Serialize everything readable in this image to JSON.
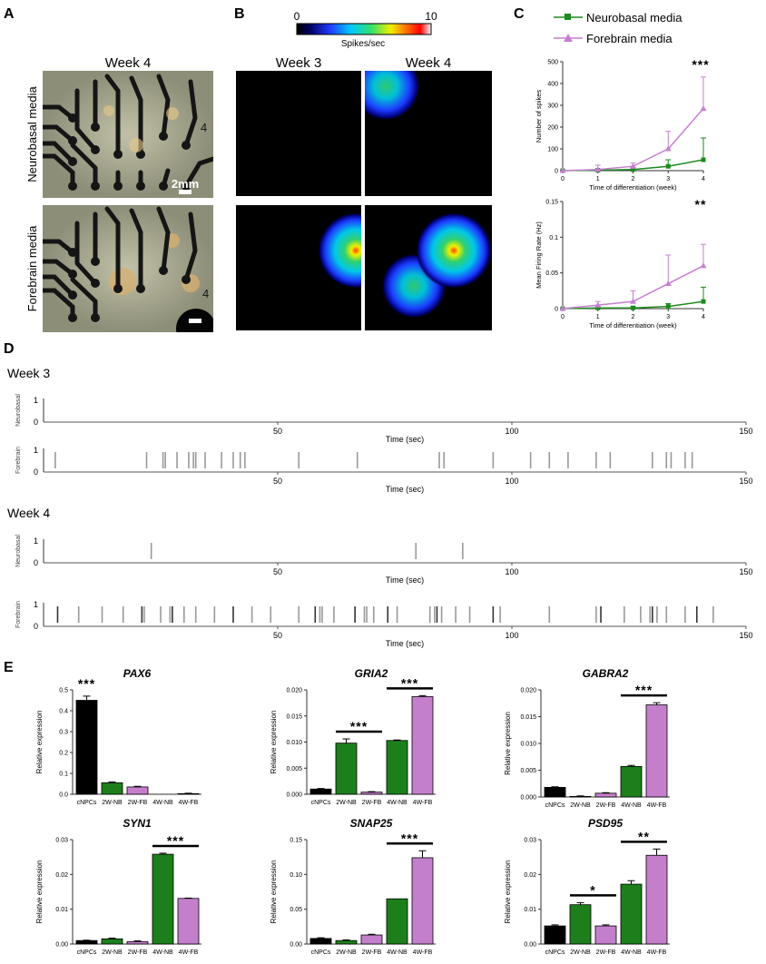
{
  "panels": {
    "A": {
      "letter": "A",
      "column_title": "Week 4",
      "row_labels": [
        "Neurobasal media",
        "Forebrain media"
      ],
      "scale_bar_label": "2mm",
      "electrode_label": "4"
    },
    "B": {
      "letter": "B",
      "colorbar_min": "0",
      "colorbar_max": "10",
      "colorbar_label": "Spikes/sec",
      "column_titles": [
        "Week 3",
        "Week 4"
      ]
    },
    "C": {
      "letter": "C",
      "legend": [
        "Neurobasal media",
        "Forebrain media"
      ]
    },
    "D": {
      "letter": "D",
      "week_labels": [
        "Week 3",
        "Week 4"
      ],
      "row_labels": [
        "Neurobasal",
        "Forebrain"
      ],
      "xlabel": "Time (sec)",
      "x_ticks": [
        "50",
        "100",
        "150"
      ],
      "y_ticks": [
        "0",
        "1"
      ]
    },
    "E": {
      "letter": "E"
    }
  },
  "colors": {
    "neurobasal": "#1e8a1e",
    "forebrain": "#c77fd0",
    "cnpc": "#000000",
    "nb_bar": "#1c7f1c",
    "fb_bar": "#c47fcc"
  },
  "chart_data": [
    {
      "id": "C-top",
      "type": "line",
      "xlabel": "Time of differentiation (week)",
      "ylabel": "Number of spikes",
      "x": [
        0,
        1,
        2,
        3,
        4
      ],
      "xlim": [
        0,
        4
      ],
      "ylim": [
        0,
        500
      ],
      "yticks": [
        0,
        100,
        200,
        300,
        400,
        500
      ],
      "xticks": [
        0,
        1,
        2,
        3,
        4
      ],
      "significance": "***",
      "series": [
        {
          "name": "Neurobasal media",
          "values": [
            0,
            2,
            5,
            20,
            50
          ],
          "err": [
            0,
            5,
            10,
            30,
            100
          ]
        },
        {
          "name": "Forebrain media",
          "values": [
            0,
            5,
            20,
            100,
            285
          ],
          "err": [
            0,
            20,
            15,
            80,
            145
          ]
        }
      ]
    },
    {
      "id": "C-bottom",
      "type": "line",
      "xlabel": "Time of differentiation (week)",
      "ylabel": "Mean Firing Rate (Hz)",
      "x": [
        0,
        1,
        2,
        3,
        4
      ],
      "xlim": [
        0,
        4
      ],
      "ylim": [
        0,
        0.15
      ],
      "yticks": [
        0,
        0.05,
        0.1,
        0.15
      ],
      "xticks": [
        0,
        1,
        2,
        3,
        4
      ],
      "significance": "**",
      "series": [
        {
          "name": "Neurobasal media",
          "values": [
            0,
            0.001,
            0.001,
            0.003,
            0.01
          ],
          "err": [
            0,
            0.002,
            0.002,
            0.004,
            0.02
          ]
        },
        {
          "name": "Forebrain media",
          "values": [
            0,
            0.005,
            0.01,
            0.035,
            0.06
          ],
          "err": [
            0,
            0.005,
            0.015,
            0.04,
            0.03
          ]
        }
      ]
    },
    {
      "id": "D-w3-nb",
      "type": "scatter",
      "xlim": [
        0,
        150
      ],
      "ylim": [
        0,
        1
      ],
      "ylabel": "Neurobasal",
      "xlabel": "Time (sec)",
      "x": []
    },
    {
      "id": "D-w3-fb",
      "type": "scatter",
      "xlim": [
        0,
        150
      ],
      "ylim": [
        0,
        1
      ],
      "ylabel": "Forebrain",
      "xlabel": "Time (sec)",
      "x": [
        2.5,
        22,
        25.5,
        26,
        28.5,
        31,
        32,
        32.5,
        34.5,
        38,
        40.5,
        42,
        43,
        54.5,
        67,
        84.5,
        85.5,
        96,
        104,
        108,
        112,
        118,
        121,
        130,
        133,
        134,
        137,
        138.5
      ]
    },
    {
      "id": "D-w4-nb",
      "type": "scatter",
      "xlim": [
        0,
        150
      ],
      "ylim": [
        0,
        1
      ],
      "ylabel": "Neurobasal",
      "xlabel": "Time (sec)",
      "x": [
        23,
        79.5,
        89.5
      ]
    },
    {
      "id": "D-w4-fb",
      "type": "scatter",
      "xlim": [
        0,
        150
      ],
      "ylim": [
        0,
        1
      ],
      "ylabel": "Forebrain",
      "xlabel": "Time (sec)",
      "x": [
        3,
        7.5,
        12.5,
        17,
        21,
        21.5,
        25,
        27,
        27.5,
        30,
        32.5,
        36.5,
        40.5,
        44.5,
        48.5,
        54.5,
        58,
        59,
        59.5,
        62,
        66.5,
        68.5,
        69,
        70.5,
        73.5,
        75.5,
        82.5,
        83.5,
        84,
        85,
        88,
        91,
        96,
        97.5,
        108,
        118,
        119,
        124,
        127.5,
        129.5,
        130,
        131,
        133,
        137,
        139.5,
        143
      ]
    },
    {
      "id": "E-PAX6",
      "type": "bar",
      "title": "PAX6",
      "ylabel": "Relative expression",
      "categories": [
        "cNPCs",
        "2W-NB",
        "2W-FB",
        "4W-NB",
        "4W-FB"
      ],
      "values": [
        0.45,
        0.055,
        0.035,
        0.0,
        0.003
      ],
      "err": [
        0.02,
        0.004,
        0.003,
        0.0,
        0.002
      ],
      "ylim": [
        0,
        0.5
      ],
      "yticks": [
        "0.0",
        "0.1",
        "0.2",
        "0.3",
        "0.4",
        "0.5"
      ],
      "significance": [
        {
          "label": "***",
          "over": 0,
          "to": 0
        }
      ]
    },
    {
      "id": "E-GRIA2",
      "type": "bar",
      "title": "GRIA2",
      "ylabel": "Relative expression",
      "categories": [
        "cNPCs",
        "2W-NB",
        "2W-FB",
        "4W-NB",
        "4W-FB"
      ],
      "values": [
        0.001,
        0.0098,
        0.0004,
        0.0103,
        0.0187
      ],
      "err": [
        0.0001,
        0.0008,
        0.0001,
        0.0001,
        0.0002
      ],
      "ylim": [
        0,
        0.02
      ],
      "yticks": [
        "0.000",
        "0.005",
        "0.010",
        "0.015",
        "0.020"
      ],
      "significance": [
        {
          "label": "***",
          "over": 1,
          "to": 2
        },
        {
          "label": "***",
          "over": 3,
          "to": 4
        }
      ]
    },
    {
      "id": "E-GABRA2",
      "type": "bar",
      "title": "GABRA2",
      "ylabel": "Relative expression",
      "categories": [
        "cNPCs",
        "2W-NB",
        "2W-FB",
        "4W-NB",
        "4W-FB"
      ],
      "values": [
        0.0018,
        0.0001,
        0.0007,
        0.0057,
        0.0172
      ],
      "err": [
        0.0001,
        0.0001,
        0.0001,
        0.0002,
        0.0004
      ],
      "ylim": [
        0,
        0.02
      ],
      "yticks": [
        "0.000",
        "0.005",
        "0.010",
        "0.015",
        "0.020"
      ],
      "significance": [
        {
          "label": "***",
          "over": 3,
          "to": 4
        }
      ]
    },
    {
      "id": "E-SYN1",
      "type": "bar",
      "title": "SYN1",
      "ylabel": "Relative expression",
      "categories": [
        "cNPCs",
        "2W-NB",
        "2W-FB",
        "4W-NB",
        "4W-FB"
      ],
      "values": [
        0.001,
        0.0015,
        0.0007,
        0.0258,
        0.0131
      ],
      "err": [
        0.0001,
        0.0002,
        0.0002,
        0.0003,
        0.0001
      ],
      "ylim": [
        0,
        0.03
      ],
      "yticks": [
        "0.00",
        "0.01",
        "0.02",
        "0.03"
      ],
      "significance": [
        {
          "label": "***",
          "over": 3,
          "to": 4
        }
      ]
    },
    {
      "id": "E-SNAP25",
      "type": "bar",
      "title": "SNAP25",
      "ylabel": "Relative expression",
      "categories": [
        "cNPCs",
        "2W-NB",
        "2W-FB",
        "4W-NB",
        "4W-FB"
      ],
      "values": [
        0.008,
        0.005,
        0.013,
        0.065,
        0.124
      ],
      "err": [
        0.001,
        0.001,
        0.001,
        0.0,
        0.01
      ],
      "ylim": [
        0,
        0.15
      ],
      "yticks": [
        "0.00",
        "0.05",
        "0.10",
        "0.15"
      ],
      "significance": [
        {
          "label": "***",
          "over": 3,
          "to": 4
        }
      ]
    },
    {
      "id": "E-PSD95",
      "type": "bar",
      "title": "PSD95",
      "ylabel": "Relative expression",
      "categories": [
        "cNPCs",
        "2W-NB",
        "2W-FB",
        "4W-NB",
        "4W-FB"
      ],
      "values": [
        0.0052,
        0.0113,
        0.0052,
        0.0172,
        0.0255
      ],
      "err": [
        0.0003,
        0.0006,
        0.0003,
        0.001,
        0.0018
      ],
      "ylim": [
        0,
        0.03
      ],
      "yticks": [
        "0.00",
        "0.01",
        "0.02",
        "0.03"
      ],
      "significance": [
        {
          "label": "*",
          "over": 1,
          "to": 2
        },
        {
          "label": "**",
          "over": 3,
          "to": 4
        }
      ]
    }
  ]
}
